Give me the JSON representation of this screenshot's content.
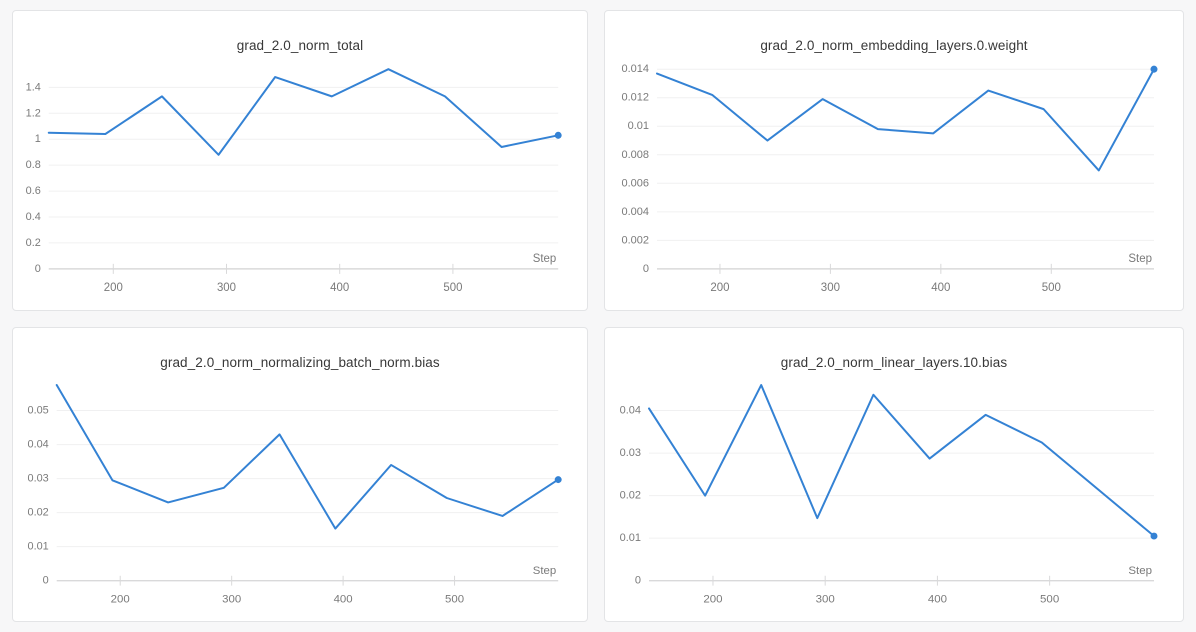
{
  "style": {
    "page_background": "#f7f7f8",
    "card_background": "#ffffff",
    "card_border": "#e3e4e6",
    "line_color": "#3482d4",
    "grid_color": "#f0f0f1",
    "axis_color": "#d9d9da",
    "tick_mark_color": "#d9d9da",
    "tick_text_color": "#7a7a7a",
    "title_color": "#383838"
  },
  "chart_data": [
    {
      "type": "line",
      "title": "grad_2.0_norm_total",
      "xlabel": "Step",
      "ylabel": "",
      "x": [
        143,
        193,
        243,
        293,
        343,
        393,
        443,
        493,
        543,
        593
      ],
      "values": [
        1.05,
        1.04,
        1.33,
        0.88,
        1.48,
        1.33,
        1.54,
        1.33,
        0.94,
        1.03
      ],
      "xlim": [
        143,
        593
      ],
      "ylim": [
        0,
        1.54
      ],
      "xticks": [
        200,
        300,
        400,
        500
      ],
      "yticks": [
        0,
        0.2,
        0.4,
        0.6,
        0.8,
        1.0,
        1.2,
        1.4
      ],
      "ytick_labels": [
        "0",
        "0.2",
        "0.4",
        "0.6",
        "0.8",
        "1",
        "1.2",
        "1.4"
      ],
      "grid": true,
      "legend": "none",
      "last_point_marker": true
    },
    {
      "type": "line",
      "title": "grad_2.0_norm_embedding_layers.0.weight",
      "xlabel": "Step",
      "ylabel": "",
      "x": [
        143,
        193,
        243,
        293,
        343,
        393,
        443,
        493,
        543,
        593
      ],
      "values": [
        0.0137,
        0.0122,
        0.009,
        0.0119,
        0.0098,
        0.0095,
        0.0125,
        0.0112,
        0.0069,
        0.014
      ],
      "xlim": [
        143,
        593
      ],
      "ylim": [
        0,
        0.014
      ],
      "xticks": [
        200,
        300,
        400,
        500
      ],
      "yticks": [
        0,
        0.002,
        0.004,
        0.006,
        0.008,
        0.01,
        0.012,
        0.014
      ],
      "ytick_labels": [
        "0",
        "0.002",
        "0.004",
        "0.006",
        "0.008",
        "0.01",
        "0.012",
        "0.014"
      ],
      "grid": true,
      "legend": "none",
      "last_point_marker": true
    },
    {
      "type": "line",
      "title": "grad_2.0_norm_normalizing_batch_norm.bias",
      "xlabel": "Step",
      "ylabel": "",
      "x": [
        143,
        193,
        243,
        293,
        343,
        393,
        443,
        493,
        543,
        593
      ],
      "values": [
        0.0575,
        0.0295,
        0.023,
        0.0273,
        0.043,
        0.0153,
        0.034,
        0.0243,
        0.019,
        0.0297
      ],
      "xlim": [
        143,
        593
      ],
      "ylim": [
        0,
        0.0575
      ],
      "xticks": [
        200,
        300,
        400,
        500
      ],
      "yticks": [
        0,
        0.01,
        0.02,
        0.03,
        0.04,
        0.05
      ],
      "ytick_labels": [
        "0",
        "0.01",
        "0.02",
        "0.03",
        "0.04",
        "0.05"
      ],
      "grid": true,
      "legend": "none",
      "last_point_marker": true
    },
    {
      "type": "line",
      "title": "grad_2.0_norm_linear_layers.10.bias",
      "xlabel": "Step",
      "ylabel": "",
      "x": [
        143,
        193,
        243,
        293,
        343,
        393,
        443,
        493,
        543,
        593
      ],
      "values": [
        0.0405,
        0.02,
        0.046,
        0.0147,
        0.0437,
        0.0287,
        0.039,
        0.0325,
        0.0215,
        0.0105
      ],
      "xlim": [
        143,
        593
      ],
      "ylim": [
        0,
        0.046
      ],
      "xticks": [
        200,
        300,
        400,
        500
      ],
      "yticks": [
        0,
        0.01,
        0.02,
        0.03,
        0.04
      ],
      "ytick_labels": [
        "0",
        "0.01",
        "0.02",
        "0.03",
        "0.04"
      ],
      "grid": true,
      "legend": "none",
      "last_point_marker": true
    }
  ]
}
